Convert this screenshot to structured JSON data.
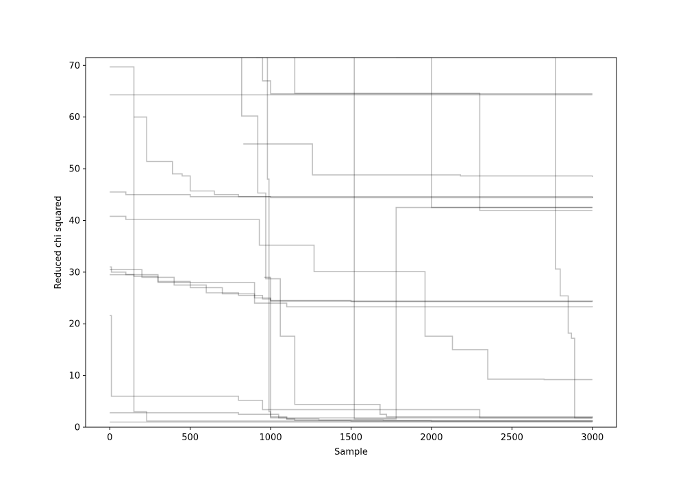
{
  "chart_data": {
    "type": "line",
    "title": "",
    "xlabel": "Sample",
    "ylabel": "Reduced chi squared",
    "xlim": [
      -150,
      3150
    ],
    "ylim": [
      0,
      71.5
    ],
    "xticks": [
      0,
      500,
      1000,
      1500,
      2000,
      2500,
      3000
    ],
    "yticks": [
      0,
      10,
      20,
      30,
      40,
      50,
      60,
      70
    ],
    "grid": false,
    "legend": "none",
    "line_style": "steps-post",
    "line_color": "#000000",
    "line_alpha": 0.25,
    "series": [
      {
        "x": [
          0,
          150,
          3000
        ],
        "y": [
          64.3,
          64.3,
          64.3
        ]
      },
      {
        "x": [
          0,
          150,
          230,
          3000
        ],
        "y": [
          69.7,
          3.0,
          1.2,
          1.2
        ]
      },
      {
        "x": [
          150,
          230,
          390,
          450,
          500,
          650,
          800,
          3000
        ],
        "y": [
          60.0,
          51.4,
          49.0,
          48.6,
          45.7,
          45.0,
          44.6,
          44.3
        ]
      },
      {
        "x": [
          0,
          100,
          500,
          1000,
          3000
        ],
        "y": [
          45.5,
          45.0,
          44.6,
          44.4,
          44.3
        ]
      },
      {
        "x": [
          0,
          100,
          930,
          1270,
          1960,
          2130,
          2350,
          2700,
          3000
        ],
        "y": [
          40.8,
          40.2,
          35.2,
          30.1,
          17.6,
          15.0,
          9.3,
          9.2,
          9.2
        ]
      },
      {
        "x": [
          0,
          200,
          400,
          600,
          800,
          950,
          1000,
          1500,
          3000
        ],
        "y": [
          30.5,
          29.0,
          27.5,
          26.0,
          25.5,
          24.8,
          24.5,
          24.3,
          24.3
        ]
      },
      {
        "x": [
          0,
          150,
          300,
          500,
          700,
          900,
          1100,
          3000
        ],
        "y": [
          29.5,
          29.2,
          28.2,
          27.0,
          25.8,
          24.0,
          23.3,
          23.2
        ]
      },
      {
        "x": [
          0,
          10,
          100,
          300,
          900,
          1000,
          3000
        ],
        "y": [
          31.0,
          30.0,
          29.5,
          28.0,
          25.0,
          24.4,
          24.3
        ]
      },
      {
        "x": [
          0,
          10,
          800,
          950,
          2300,
          3000
        ],
        "y": [
          21.6,
          6.0,
          5.2,
          3.4,
          1.8,
          1.8
        ]
      },
      {
        "x": [
          0,
          800,
          1000,
          3000
        ],
        "y": [
          2.8,
          2.5,
          1.8,
          1.8
        ]
      },
      {
        "x": [
          0,
          3000
        ],
        "y": [
          1.0,
          1.0
        ]
      },
      {
        "x": [
          810,
          820,
          920,
          970,
          1060,
          1150,
          1680,
          1720,
          3000
        ],
        "y": [
          71.5,
          60.2,
          45.3,
          28.7,
          17.6,
          4.4,
          2.5,
          2.0,
          1.8
        ]
      },
      {
        "x": [
          910,
          950,
          1000,
          1270,
          3000
        ],
        "y": [
          71.5,
          67.0,
          64.5,
          64.5,
          64.5
        ]
      },
      {
        "x": [
          830,
          1260,
          2180,
          3000
        ],
        "y": [
          54.8,
          48.8,
          48.6,
          48.4
        ]
      },
      {
        "x": [
          1140,
          1150,
          2300,
          3000
        ],
        "y": [
          71.5,
          64.6,
          41.9,
          41.9
        ]
      },
      {
        "x": [
          1500,
          1520,
          1780,
          3000
        ],
        "y": [
          71.5,
          1.6,
          42.5,
          42.5
        ]
      },
      {
        "x": [
          1780,
          2000,
          2500,
          3000
        ],
        "y": [
          71.5,
          42.5,
          42.5,
          42.5
        ]
      },
      {
        "x": [
          2750,
          2770,
          2800,
          2850,
          2870,
          2890,
          3000
        ],
        "y": [
          71.5,
          30.6,
          25.4,
          18.2,
          17.2,
          1.8,
          1.8
        ]
      },
      {
        "x": [
          970,
          980,
          990,
          1000,
          1100,
          1150,
          1500,
          3000
        ],
        "y": [
          71.5,
          48.0,
          3.0,
          2.0,
          1.6,
          1.3,
          1.2,
          1.1
        ]
      },
      {
        "x": [
          960,
          1000,
          1050,
          1100,
          1300,
          1700,
          2000,
          3000
        ],
        "y": [
          29.0,
          2.5,
          1.8,
          1.6,
          1.4,
          1.3,
          1.2,
          1.1
        ]
      }
    ]
  }
}
